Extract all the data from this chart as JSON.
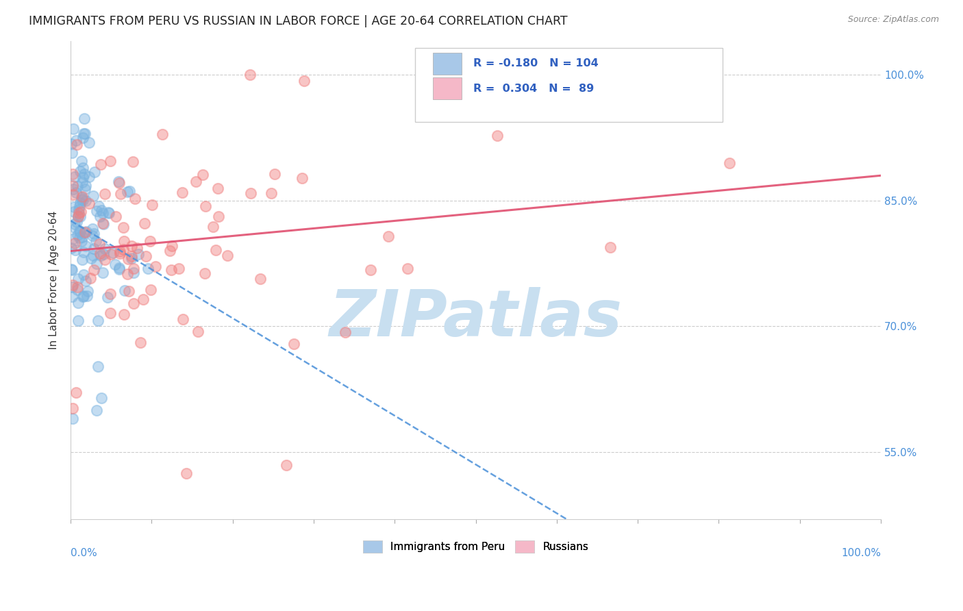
{
  "title": "IMMIGRANTS FROM PERU VS RUSSIAN IN LABOR FORCE | AGE 20-64 CORRELATION CHART",
  "source": "Source: ZipAtlas.com",
  "ylabel": "In Labor Force | Age 20-64",
  "ytick_vals": [
    0.55,
    0.7,
    0.85,
    1.0
  ],
  "ytick_labels": [
    "55.0%",
    "70.0%",
    "85.0%",
    "100.0%"
  ],
  "peru_color": "#7ab3e0",
  "russian_color": "#f08080",
  "peru_line_color": "#4a90d9",
  "russian_line_color": "#e05070",
  "peru_R": -0.18,
  "peru_N": 104,
  "russian_R": 0.304,
  "russian_N": 89,
  "xmin": 0.0,
  "xmax": 1.0,
  "ymin": 0.47,
  "ymax": 1.04,
  "watermark_color": "#c8dff0",
  "watermark_text": "ZIPatlas",
  "legend_peru_color": "#a8c8e8",
  "legend_russian_color": "#f5b8c8",
  "bottom_legend_peru": "Immigrants from Peru",
  "bottom_legend_russian": "Russians"
}
